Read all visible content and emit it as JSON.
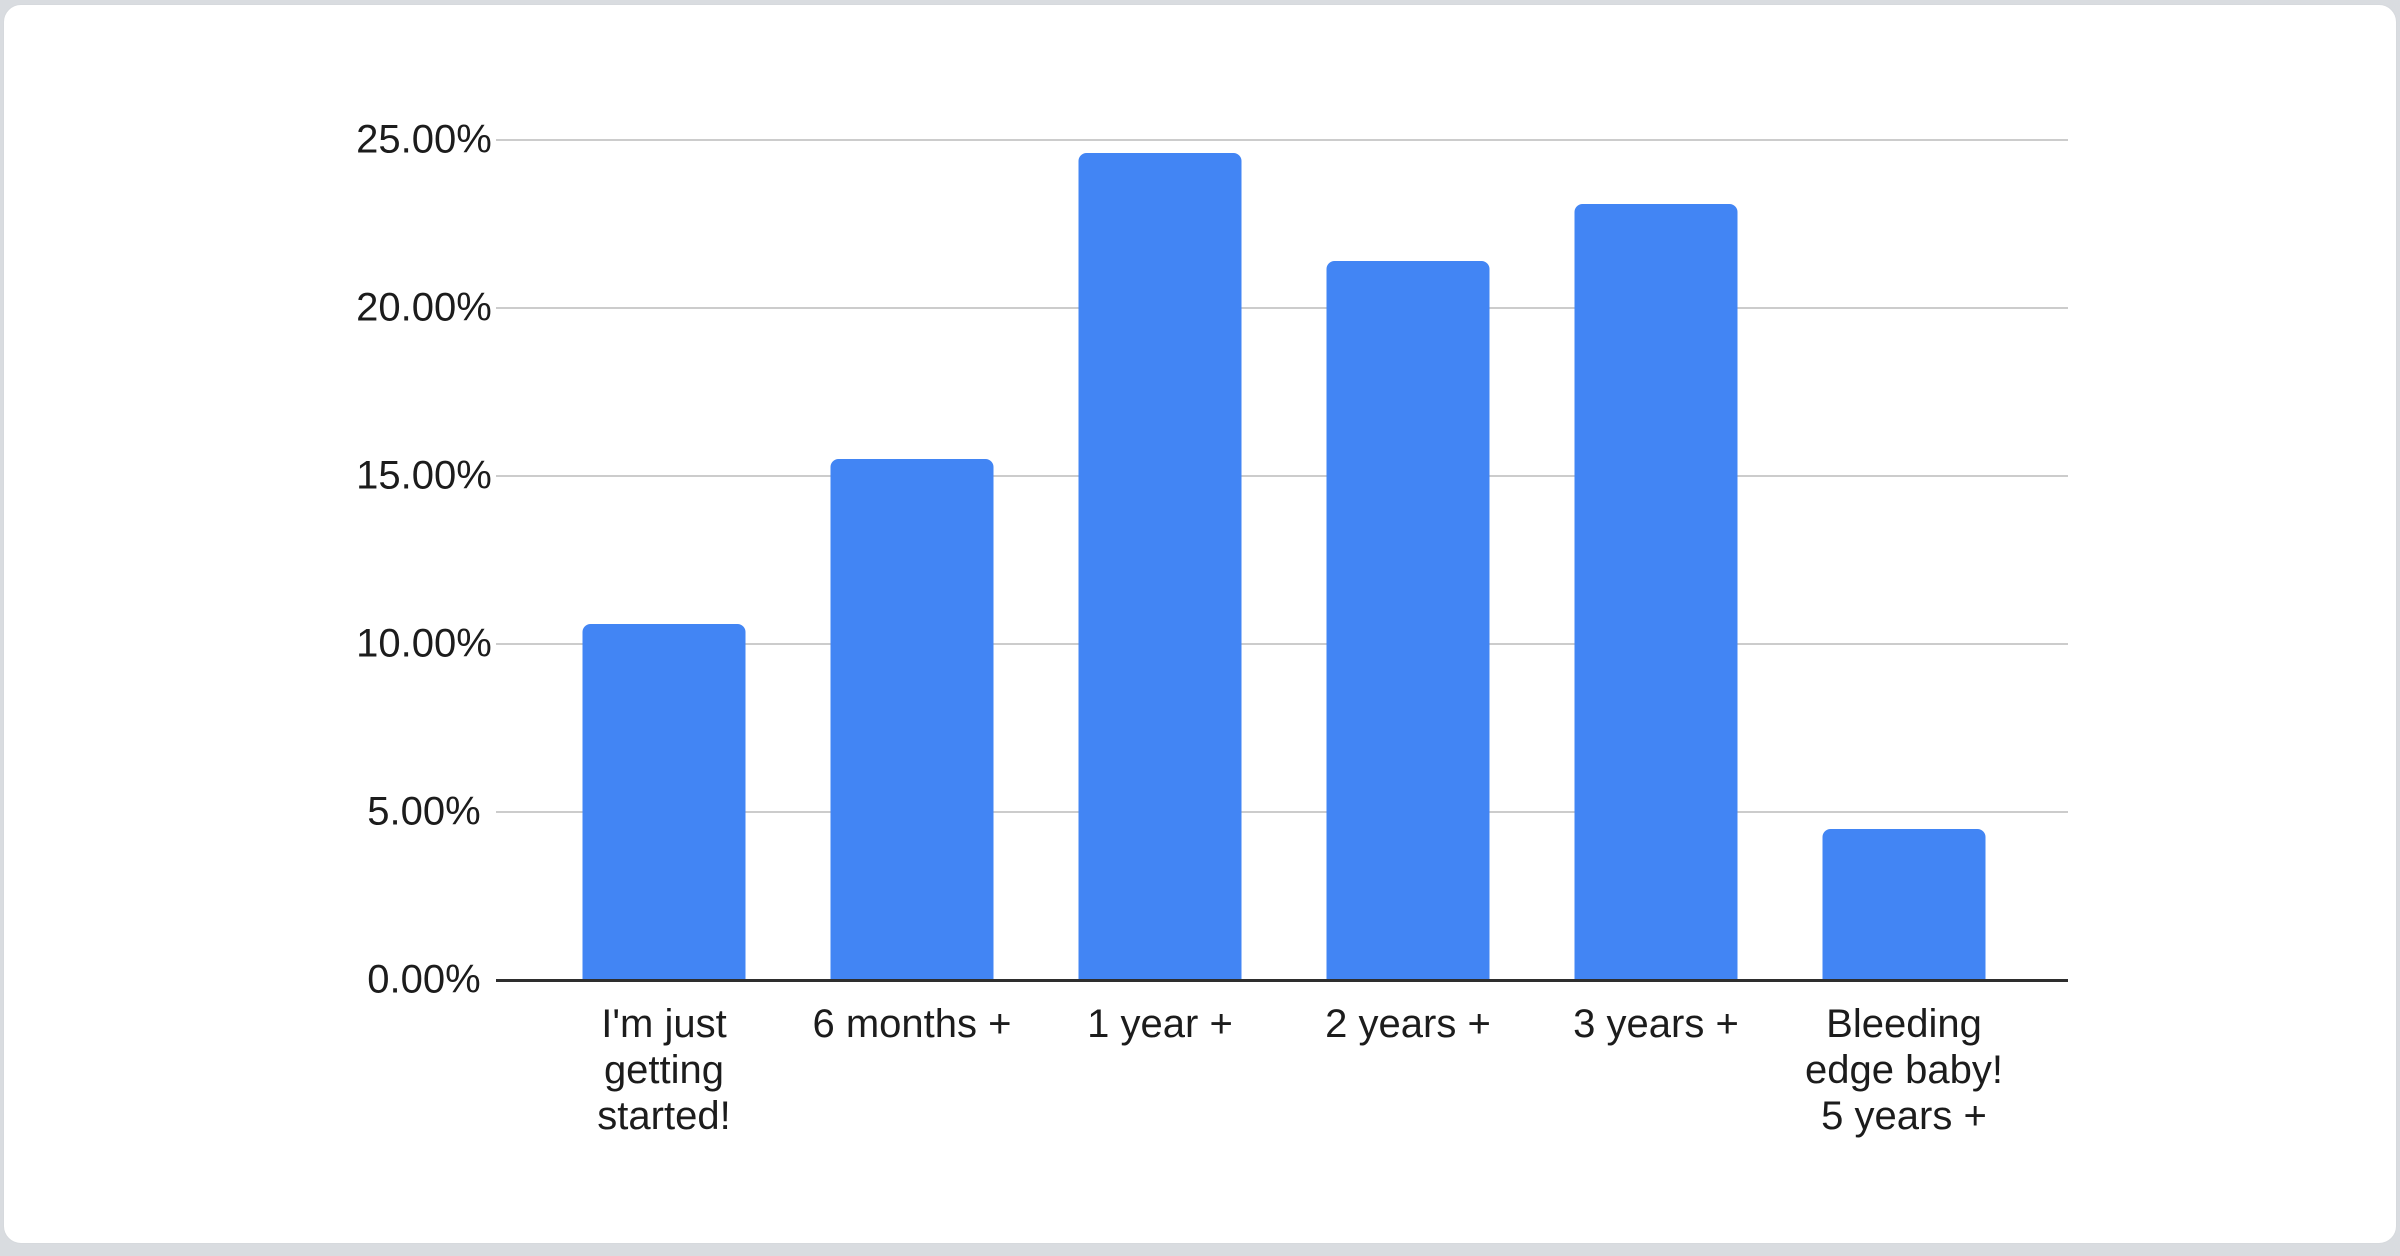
{
  "chart_data": {
    "type": "bar",
    "categories": [
      "I'm just getting started!",
      "6 months +",
      "1 year +",
      "2 years +",
      "3 years +",
      "Bleeding edge baby! 5 years +"
    ],
    "values": [
      10.6,
      15.5,
      24.6,
      21.4,
      23.1,
      4.5
    ],
    "y_ticks": [
      {
        "value": 0,
        "label": "0.00%"
      },
      {
        "value": 5,
        "label": "5.00%"
      },
      {
        "value": 10,
        "label": "10.00%"
      },
      {
        "value": 15,
        "label": "15.00%"
      },
      {
        "value": 20,
        "label": "20.00%"
      },
      {
        "value": 25,
        "label": "25.00%"
      }
    ],
    "ylim": [
      0,
      25
    ],
    "title": "",
    "xlabel": "",
    "ylabel": "",
    "legend": "none",
    "grid": "horizontal",
    "bar_color": "#4285f4",
    "gridline_color": "#cccccc",
    "axis_color": "#2e2e2e",
    "label_color": "#1c1c1c"
  }
}
